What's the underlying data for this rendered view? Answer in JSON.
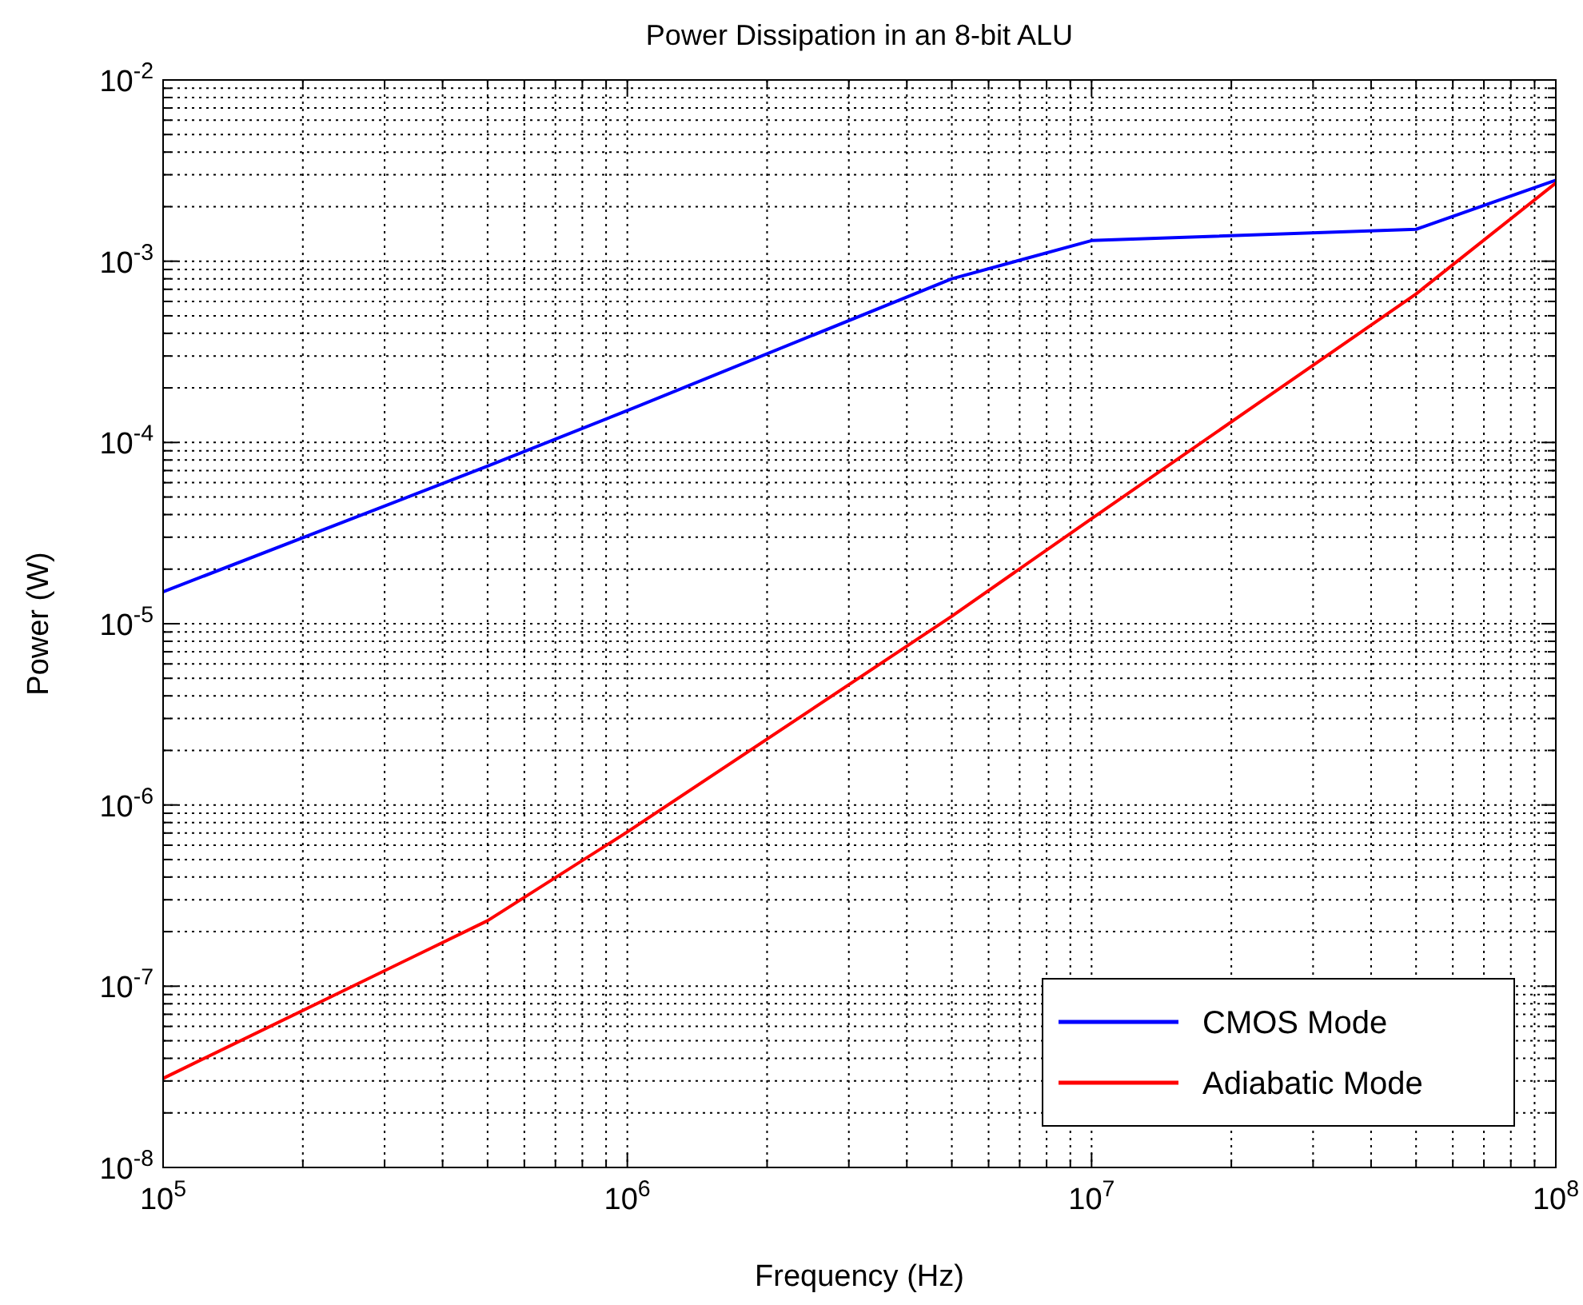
{
  "chart_data": {
    "type": "line",
    "title": "Power Dissipation in an 8-bit ALU",
    "xlabel": "Frequency (Hz)",
    "ylabel": "Power (W)",
    "log": "xy",
    "grid": true,
    "legend": "bottom right",
    "line_style": "solid",
    "marker": "none",
    "x": [
      100000,
      500000,
      1000000,
      5000000,
      10000000,
      50000000,
      100000000
    ],
    "series": [
      {
        "name": "CMOS Mode",
        "color": "#0000ff",
        "values": [
          1.5e-05,
          7.4e-05,
          0.00015,
          0.0008,
          0.0013,
          0.0015,
          0.0028
        ]
      },
      {
        "name": "Adiabatic Mode",
        "color": "#ff0000",
        "values": [
          3.1e-08,
          2.3e-07,
          7.1e-07,
          1.1e-05,
          3.8e-05,
          0.00066,
          0.0027
        ]
      }
    ],
    "xlim": [
      100000,
      100000000
    ],
    "ylim": [
      1e-08,
      0.01
    ],
    "xticks": [
      {
        "value": 100000,
        "label": "10$^{5}$"
      },
      {
        "value": 200000,
        "label": null
      },
      {
        "value": 300000,
        "label": null
      },
      {
        "value": 400000,
        "label": null
      },
      {
        "value": 500000,
        "label": null
      },
      {
        "value": 600000,
        "label": null
      },
      {
        "value": 700000,
        "label": null
      },
      {
        "value": 800000,
        "label": null
      },
      {
        "value": 900000,
        "label": null
      },
      {
        "value": 1000000,
        "label": "10$^{6}$"
      },
      {
        "value": 2000000,
        "label": null
      },
      {
        "value": 3000000,
        "label": null
      },
      {
        "value": 4000000,
        "label": null
      },
      {
        "value": 5000000,
        "label": null
      },
      {
        "value": 6000000,
        "label": null
      },
      {
        "value": 7000000,
        "label": null
      },
      {
        "value": 8000000,
        "label": null
      },
      {
        "value": 9000000,
        "label": null
      },
      {
        "value": 10000000,
        "label": "10$^{7}$"
      },
      {
        "value": 20000000,
        "label": null
      },
      {
        "value": 30000000,
        "label": null
      },
      {
        "value": 40000000,
        "label": null
      },
      {
        "value": 50000000,
        "label": null
      },
      {
        "value": 60000000,
        "label": null
      },
      {
        "value": 70000000,
        "label": null
      },
      {
        "value": 80000000,
        "label": null
      },
      {
        "value": 90000000,
        "label": null
      },
      {
        "value": 100000000,
        "label": "10$^{8}$"
      }
    ],
    "yticks": [
      {
        "value": 1e-08,
        "label": "10$^{-8}$"
      },
      {
        "value": 2e-08,
        "label": null
      },
      {
        "value": 3e-08,
        "label": null
      },
      {
        "value": 4e-08,
        "label": null
      },
      {
        "value": 5e-08,
        "label": null
      },
      {
        "value": 6e-08,
        "label": null
      },
      {
        "value": 7e-08,
        "label": null
      },
      {
        "value": 8e-08,
        "label": null
      },
      {
        "value": 9e-08,
        "label": null
      },
      {
        "value": 1e-07,
        "label": "10$^{-7}$"
      },
      {
        "value": 2e-07,
        "label": null
      },
      {
        "value": 3e-07,
        "label": null
      },
      {
        "value": 4e-07,
        "label": null
      },
      {
        "value": 5e-07,
        "label": null
      },
      {
        "value": 6e-07,
        "label": null
      },
      {
        "value": 7e-07,
        "label": null
      },
      {
        "value": 8e-07,
        "label": null
      },
      {
        "value": 9e-07,
        "label": null
      },
      {
        "value": 1e-06,
        "label": "10$^{-6}$"
      },
      {
        "value": 2e-06,
        "label": null
      },
      {
        "value": 3e-06,
        "label": null
      },
      {
        "value": 4e-06,
        "label": null
      },
      {
        "value": 5e-06,
        "label": null
      },
      {
        "value": 6e-06,
        "label": null
      },
      {
        "value": 7e-06,
        "label": null
      },
      {
        "value": 8e-06,
        "label": null
      },
      {
        "value": 9e-06,
        "label": null
      },
      {
        "value": 1e-05,
        "label": "10$^{-5}$"
      },
      {
        "value": 2e-05,
        "label": null
      },
      {
        "value": 3e-05,
        "label": null
      },
      {
        "value": 4e-05,
        "label": null
      },
      {
        "value": 5e-05,
        "label": null
      },
      {
        "value": 6e-05,
        "label": null
      },
      {
        "value": 7e-05,
        "label": null
      },
      {
        "value": 8e-05,
        "label": null
      },
      {
        "value": 9e-05,
        "label": null
      },
      {
        "value": 0.0001,
        "label": "10$^{-4}$"
      },
      {
        "value": 0.0002,
        "label": null
      },
      {
        "value": 0.0003,
        "label": null
      },
      {
        "value": 0.0004,
        "label": null
      },
      {
        "value": 0.0005,
        "label": null
      },
      {
        "value": 0.0006,
        "label": null
      },
      {
        "value": 0.0007,
        "label": null
      },
      {
        "value": 0.0008,
        "label": null
      },
      {
        "value": 0.0009,
        "label": null
      },
      {
        "value": 0.001,
        "label": "10$^{-3}$"
      },
      {
        "value": 0.002,
        "label": null
      },
      {
        "value": 0.003,
        "label": null
      },
      {
        "value": 0.004,
        "label": null
      },
      {
        "value": 0.005,
        "label": null
      },
      {
        "value": 0.006,
        "label": null
      },
      {
        "value": 0.007,
        "label": null
      },
      {
        "value": 0.008,
        "label": null
      },
      {
        "value": 0.009,
        "label": null
      },
      {
        "value": 0.01,
        "label": "10$^{-2}$"
      }
    ]
  }
}
